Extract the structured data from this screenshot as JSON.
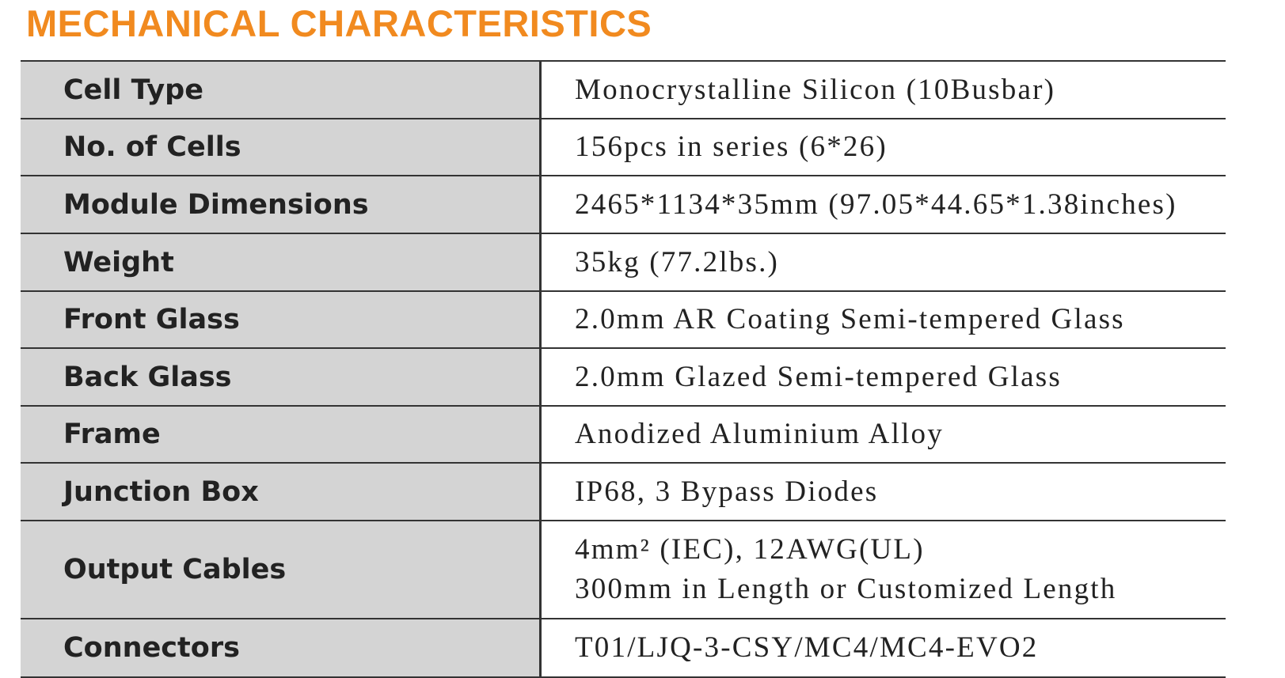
{
  "header": {
    "title": "MECHANICAL CHARACTERISTICS"
  },
  "table": {
    "rows": [
      {
        "label": "Cell Type",
        "lines": [
          "Monocrystalline Silicon (10Busbar)"
        ]
      },
      {
        "label": "No. of Cells",
        "lines": [
          "156pcs in series (6*26)"
        ]
      },
      {
        "label": "Module Dimensions",
        "lines": [
          "2465*1134*35mm (97.05*44.65*1.38inches)"
        ]
      },
      {
        "label": "Weight",
        "lines": [
          "35kg (77.2lbs.)"
        ]
      },
      {
        "label": "Front Glass",
        "lines": [
          "2.0mm AR Coating Semi-tempered Glass"
        ]
      },
      {
        "label": "Back Glass",
        "lines": [
          "2.0mm Glazed Semi-tempered Glass"
        ]
      },
      {
        "label": "Frame",
        "lines": [
          "Anodized Aluminium Alloy"
        ]
      },
      {
        "label": "Junction Box",
        "lines": [
          "IP68, 3 Bypass Diodes"
        ]
      },
      {
        "label": "Output Cables",
        "lines": [
          "4mm² (IEC), 12AWG(UL)",
          "300mm in Length or Customized Length"
        ]
      },
      {
        "label": "Connectors",
        "lines": [
          "T01/LJQ-3-CSY/MC4/MC4-EVO2"
        ]
      }
    ]
  }
}
